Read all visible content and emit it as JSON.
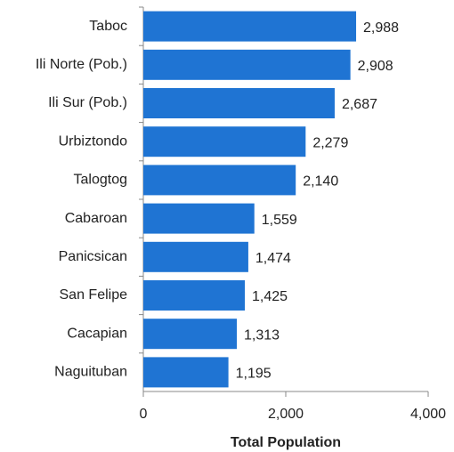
{
  "chart_data": {
    "type": "bar",
    "orientation": "horizontal",
    "categories": [
      "Taboc",
      "Ili Norte (Pob.)",
      "Ili Sur (Pob.)",
      "Urbiztondo",
      "Talogtog",
      "Cabaroan",
      "Panicsican",
      "San Felipe",
      "Cacapian",
      "Naguituban"
    ],
    "values": [
      2988,
      2908,
      2687,
      2279,
      2140,
      1559,
      1474,
      1425,
      1313,
      1195
    ],
    "value_labels": [
      "2,988",
      "2,908",
      "2,687",
      "2,279",
      "2,140",
      "1,559",
      "1,474",
      "1,425",
      "1,313",
      "1,195"
    ],
    "color": "#1f74d3",
    "x_label": "Total Population",
    "xlim": [
      0,
      4000
    ],
    "xticks": [
      0,
      {
        "value": 2000,
        "label": "2,000"
      },
      {
        "value": 4000,
        "label": "4,000"
      }
    ]
  }
}
